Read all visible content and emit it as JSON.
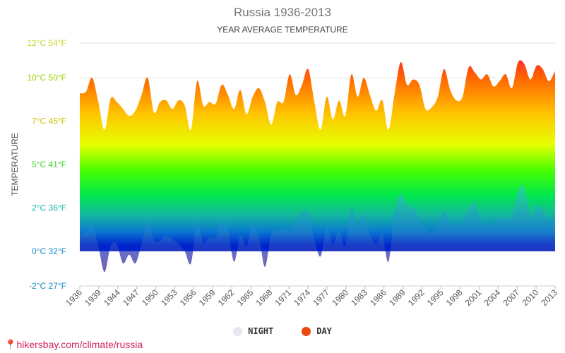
{
  "title": "Russia 1936-2013",
  "subtitle": "YEAR AVERAGE TEMPERATURE",
  "watermark": "hikersbay.com/climate/russia",
  "legend": {
    "night_label": "NIGHT",
    "day_label": "DAY",
    "night_color": "#e8e6f4",
    "day_color": "#e8490f"
  },
  "chart_data": {
    "type": "area",
    "title": "Russia 1936-2013",
    "subtitle": "YEAR AVERAGE TEMPERATURE",
    "ylabel": "TEMPERATURE",
    "xlabel": "",
    "ylim": [
      -2,
      12
    ],
    "y_tick_labels": [
      {
        "c": 12,
        "label": "12°C 54°F"
      },
      {
        "c": 10,
        "label": "10°C 50°F"
      },
      {
        "c": 7.5,
        "label": "7°C 45°F"
      },
      {
        "c": 5,
        "label": "5°C 41°F"
      },
      {
        "c": 2.5,
        "label": "2°C 36°F"
      },
      {
        "c": 0,
        "label": "0°C 32°F"
      },
      {
        "c": -2,
        "label": "-2°C 27°F"
      }
    ],
    "x_tick_labels": [
      "1936",
      "1939",
      "1944",
      "1947",
      "1950",
      "1953",
      "1956",
      "1959",
      "1962",
      "1965",
      "1968",
      "1971",
      "1974",
      "1977",
      "1980",
      "1983",
      "1986",
      "1989",
      "1992",
      "1995",
      "1998",
      "2001",
      "2004",
      "2007",
      "2010",
      "2013"
    ],
    "grid": true,
    "legend_position": "bottom-center",
    "series": [
      {
        "name": "DAY",
        "color": "#e8490f",
        "x": [
          1936,
          1937,
          1938,
          1939,
          1940,
          1941,
          1942,
          1943,
          1944,
          1945,
          1946,
          1947,
          1948,
          1949,
          1950,
          1951,
          1952,
          1953,
          1954,
          1955,
          1956,
          1957,
          1958,
          1959,
          1960,
          1961,
          1962,
          1963,
          1964,
          1965,
          1966,
          1967,
          1968,
          1969,
          1970,
          1971,
          1972,
          1973,
          1974,
          1975,
          1976,
          1977,
          1978,
          1979,
          1980,
          1981,
          1982,
          1983,
          1984,
          1985,
          1986,
          1987,
          1988,
          1989,
          1990,
          1991,
          1992,
          1993,
          1994,
          1995,
          1996,
          1997,
          1998,
          1999,
          2000,
          2001,
          2002,
          2003,
          2004,
          2005,
          2006,
          2007,
          2008,
          2009,
          2010,
          2011,
          2012,
          2013
        ],
        "values": [
          9.1,
          9.2,
          10.0,
          8.6,
          7.0,
          8.8,
          8.6,
          8.2,
          7.8,
          8.1,
          9.0,
          10.0,
          8.0,
          8.6,
          8.7,
          8.2,
          8.7,
          8.4,
          7.0,
          9.8,
          8.4,
          8.6,
          8.5,
          9.6,
          9.0,
          8.2,
          9.3,
          7.9,
          8.9,
          9.4,
          8.6,
          7.3,
          8.6,
          8.6,
          10.2,
          9.0,
          9.6,
          10.5,
          8.6,
          7.0,
          8.9,
          7.6,
          8.7,
          7.8,
          10.2,
          8.9,
          10.0,
          9.0,
          8.1,
          8.7,
          7.0,
          9.1,
          10.9,
          9.6,
          9.9,
          9.6,
          8.2,
          8.3,
          8.9,
          10.5,
          9.3,
          8.7,
          8.9,
          10.6,
          10.3,
          9.9,
          10.2,
          9.5,
          9.8,
          10.2,
          9.4,
          10.9,
          10.8,
          9.9,
          10.7,
          10.5,
          9.8,
          10.4
        ]
      },
      {
        "name": "NIGHT",
        "color": "#e8e6f4",
        "x": [
          1936,
          1937,
          1938,
          1939,
          1940,
          1941,
          1942,
          1943,
          1944,
          1945,
          1946,
          1947,
          1948,
          1949,
          1950,
          1951,
          1952,
          1953,
          1954,
          1955,
          1956,
          1957,
          1958,
          1959,
          1960,
          1961,
          1962,
          1963,
          1964,
          1965,
          1966,
          1967,
          1968,
          1969,
          1970,
          1971,
          1972,
          1973,
          1974,
          1975,
          1976,
          1977,
          1978,
          1979,
          1980,
          1981,
          1982,
          1983,
          1984,
          1985,
          1986,
          1987,
          1988,
          1989,
          1990,
          1991,
          1992,
          1993,
          1994,
          1995,
          1996,
          1997,
          1998,
          1999,
          2000,
          2001,
          2002,
          2003,
          2004,
          2005,
          2006,
          2007,
          2008,
          2009,
          2010,
          2011,
          2012,
          2013
        ],
        "values": [
          1.0,
          1.1,
          1.5,
          0.3,
          -1.2,
          0.3,
          0.4,
          -0.7,
          -0.2,
          -0.7,
          0.4,
          1.6,
          0.6,
          0.6,
          0.9,
          0.7,
          0.4,
          0.0,
          -0.7,
          1.7,
          0.5,
          0.8,
          0.8,
          1.8,
          1.2,
          -0.6,
          0.9,
          0.3,
          1.5,
          0.9,
          -0.9,
          1.0,
          1.2,
          1.3,
          1.2,
          1.6,
          2.2,
          2.2,
          0.7,
          -0.3,
          1.4,
          0.4,
          1.2,
          0.3,
          2.5,
          1.3,
          2.2,
          1.0,
          0.4,
          1.0,
          -0.6,
          2.3,
          3.3,
          2.7,
          2.5,
          2.0,
          1.3,
          1.1,
          1.5,
          2.3,
          1.5,
          1.4,
          1.6,
          2.5,
          2.8,
          1.8,
          1.6,
          1.5,
          1.9,
          1.8,
          2.0,
          3.5,
          3.7,
          2.0,
          2.6,
          2.4,
          1.7,
          2.3
        ]
      }
    ]
  }
}
